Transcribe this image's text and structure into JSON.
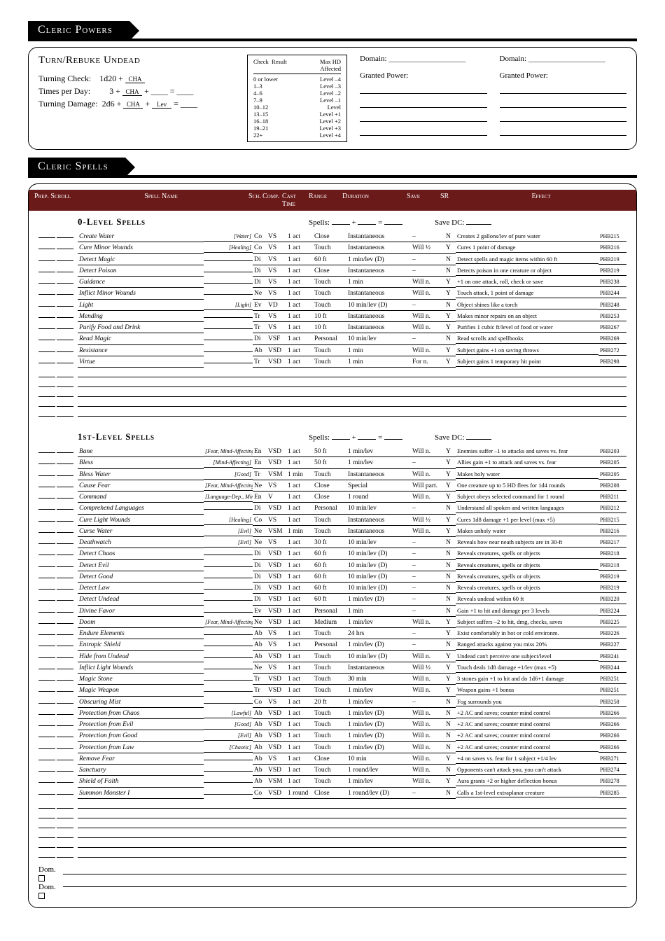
{
  "powers_title": "Cleric Powers",
  "turn": {
    "title": "Turn/Rebuke Undead",
    "check_label": "Turning Check:",
    "check_formula": "1d20 +",
    "check_stat": "CHA",
    "times_label": "Times per Day:",
    "times_base": "3 +",
    "times_stat": "CHA",
    "damage_label": "Turning Damage:",
    "damage_formula": "2d6 +",
    "damage_stat1": "CHA",
    "damage_stat2": "Lev"
  },
  "turn_table": {
    "head_check": "Check",
    "head_result": "Result",
    "head_max": "Max HD Affected",
    "rows": [
      {
        "r": "0 or lower",
        "hd": "Level –4"
      },
      {
        "r": "1–3",
        "hd": "Level –3"
      },
      {
        "r": "4–6",
        "hd": "Level –2"
      },
      {
        "r": "7–9",
        "hd": "Level –1"
      },
      {
        "r": "10–12",
        "hd": "Level"
      },
      {
        "r": "13–15",
        "hd": "Level +1"
      },
      {
        "r": "16–18",
        "hd": "Level +2"
      },
      {
        "r": "19–21",
        "hd": "Level +3"
      },
      {
        "r": "22+",
        "hd": "Level +4"
      }
    ]
  },
  "domain_label": "Domain:",
  "granted_label": "Granted Power:",
  "spells_title": "Cleric Spells",
  "header": {
    "prep": "Prep. Scroll",
    "name": "Spell Name",
    "sch": "Sch.",
    "comp": "Comp.",
    "time": "Cast Time",
    "range": "Range",
    "dur": "Duration",
    "save": "Save",
    "sr": "SR",
    "eff": "Effect"
  },
  "lvl0_title": "0-Level Spells",
  "lvl1_title": "1st-Level Spells",
  "spells_label": "Spells:",
  "save_label": "Save DC:",
  "dom_check": "Dom.",
  "spells0": [
    {
      "n": "Create Water",
      "d": "[Water]",
      "sch": "Co",
      "comp": "VS",
      "t": "1 act",
      "r": "Close",
      "dur": "Instantaneous",
      "save": "–",
      "sr": "N",
      "eff": "Creates 2 gallons/lev of pure water",
      "ref": "PHB215"
    },
    {
      "n": "Cure Minor Wounds",
      "d": "[Healing]",
      "sch": "Co",
      "comp": "VS",
      "t": "1 act",
      "r": "Touch",
      "dur": "Instantaneous",
      "save": "Will ½",
      "sr": "Y",
      "eff": "Cures 1 point of damage",
      "ref": "PHB216"
    },
    {
      "n": "Detect Magic",
      "d": "",
      "sch": "Di",
      "comp": "VS",
      "t": "1 act",
      "r": "60 ft",
      "dur": "1 min/lev (D)",
      "save": "–",
      "sr": "N",
      "eff": "Detect spells and magic items within 60 ft",
      "ref": "PHB219"
    },
    {
      "n": "Detect Poison",
      "d": "",
      "sch": "Di",
      "comp": "VS",
      "t": "1 act",
      "r": "Close",
      "dur": "Instantaneous",
      "save": "–",
      "sr": "N",
      "eff": "Detects poison in one creature or object",
      "ref": "PHB219"
    },
    {
      "n": "Guidance",
      "d": "",
      "sch": "Di",
      "comp": "VS",
      "t": "1 act",
      "r": "Touch",
      "dur": "1 min",
      "save": "Will n.",
      "sr": "Y",
      "eff": "+1 on one attack, roll, check or save",
      "ref": "PHB238"
    },
    {
      "n": "Inflict Minor Wounds",
      "d": "",
      "sch": "Ne",
      "comp": "VS",
      "t": "1 act",
      "r": "Touch",
      "dur": "Instantaneous",
      "save": "Will n.",
      "sr": "Y",
      "eff": "Touch attack, 1 point of damage",
      "ref": "PHB244"
    },
    {
      "n": "Light",
      "d": "[Light]",
      "sch": "Ev",
      "comp": "VD",
      "t": "1 act",
      "r": "Touch",
      "dur": "10 min/lev (D)",
      "save": "–",
      "sr": "N",
      "eff": "Object shines like a torch",
      "ref": "PHB248"
    },
    {
      "n": "Mending",
      "d": "",
      "sch": "Tr",
      "comp": "VS",
      "t": "1 act",
      "r": "10 ft",
      "dur": "Instantaneous",
      "save": "Will n.",
      "sr": "Y",
      "eff": "Makes minor repairs on an object",
      "ref": "PHB253"
    },
    {
      "n": "Purify Food and Drink",
      "d": "",
      "sch": "Tr",
      "comp": "VS",
      "t": "1 act",
      "r": "10 ft",
      "dur": "Instantaneous",
      "save": "Will n.",
      "sr": "Y",
      "eff": "Purifies 1 cubic ft/level of food or water",
      "ref": "PHB267"
    },
    {
      "n": "Read Magic",
      "d": "",
      "sch": "Di",
      "comp": "VSF",
      "t": "1 act",
      "r": "Personal",
      "dur": "10 min/lev",
      "save": "–",
      "sr": "N",
      "eff": "Read scrolls and spellbooks",
      "ref": "PHB269"
    },
    {
      "n": "Resistance",
      "d": "",
      "sch": "Ab",
      "comp": "VSD",
      "t": "1 act",
      "r": "Touch",
      "dur": "1 min",
      "save": "Will n.",
      "sr": "Y",
      "eff": "Subject gains +1 on saving throws",
      "ref": "PHB272"
    },
    {
      "n": "Virtue",
      "d": "",
      "sch": "Tr",
      "comp": "VSD",
      "t": "1 act",
      "r": "Touch",
      "dur": "1 min",
      "save": "For n.",
      "sr": "Y",
      "eff": "Subject gains 1 temporary hit point",
      "ref": "PHB298"
    }
  ],
  "spells1": [
    {
      "n": "Bane",
      "d": "[Fear, Mind-Affecting]",
      "sch": "En",
      "comp": "VSD",
      "t": "1 act",
      "r": "50 ft",
      "dur": "1 min/lev",
      "save": "Will n.",
      "sr": "Y",
      "eff": "Enemies suffer –1 to attacks and saves vs. fear",
      "ref": "PHB203"
    },
    {
      "n": "Bless",
      "d": "[Mind-Affecting]",
      "sch": "En",
      "comp": "VSD",
      "t": "1 act",
      "r": "50 ft",
      "dur": "1 min/lev",
      "save": "–",
      "sr": "Y",
      "eff": "Allies gain +1 to attack and saves vs. fear",
      "ref": "PHB205"
    },
    {
      "n": "Bless Water",
      "d": "[Good]",
      "sch": "Tr",
      "comp": "VSM",
      "t": "1 min",
      "r": "Touch",
      "dur": "Instantaneous",
      "save": "Will n.",
      "sr": "Y",
      "eff": "Makes holy water",
      "ref": "PHB205"
    },
    {
      "n": "Cause Fear",
      "d": "[Fear, Mind-Affecting]",
      "sch": "Ne",
      "comp": "VS",
      "t": "1 act",
      "r": "Close",
      "dur": "Special",
      "save": "Will part.",
      "sr": "Y",
      "eff": "One creature up to 5 HD flees for 1d4 rounds",
      "ref": "PHB208"
    },
    {
      "n": "Command",
      "d": "[Language-Dep., Mind-Affecting]",
      "sch": "En",
      "comp": "V",
      "t": "1 act",
      "r": "Close",
      "dur": "1 round",
      "save": "Will n.",
      "sr": "Y",
      "eff": "Subject obeys selected command for 1 round",
      "ref": "PHB211"
    },
    {
      "n": "Comprehend Languages",
      "d": "",
      "sch": "Di",
      "comp": "VSD",
      "t": "1 act",
      "r": "Personal",
      "dur": "10 min/lev",
      "save": "–",
      "sr": "N",
      "eff": "Understand all spoken and written languages",
      "ref": "PHB212"
    },
    {
      "n": "Cure Light Wounds",
      "d": "[Healing]",
      "sch": "Co",
      "comp": "VS",
      "t": "1 act",
      "r": "Touch",
      "dur": "Instantaneous",
      "save": "Will ½",
      "sr": "Y",
      "eff": "Cures 1d8 damage +1 per level (max +5)",
      "ref": "PHB215"
    },
    {
      "n": "Curse Water",
      "d": "[Evil]",
      "sch": "Ne",
      "comp": "VSM",
      "t": "1 min",
      "r": "Touch",
      "dur": "Instantaneous",
      "save": "Will n.",
      "sr": "Y",
      "eff": "Makes unholy water",
      "ref": "PHB216"
    },
    {
      "n": "Deathwatch",
      "d": "[Evil]",
      "sch": "Ne",
      "comp": "VS",
      "t": "1 act",
      "r": "30 ft",
      "dur": "10 min/lev",
      "save": "–",
      "sr": "N",
      "eff": "Reveals how near neath subjects are in 30-ft",
      "ref": "PHB217"
    },
    {
      "n": "Detect Chaos",
      "d": "",
      "sch": "Di",
      "comp": "VSD",
      "t": "1 act",
      "r": "60 ft",
      "dur": "10 min/lev (D)",
      "save": "–",
      "sr": "N",
      "eff": "Reveals creatures, spells or objects",
      "ref": "PHB218"
    },
    {
      "n": "Detect Evil",
      "d": "",
      "sch": "Di",
      "comp": "VSD",
      "t": "1 act",
      "r": "60 ft",
      "dur": "10 min/lev (D)",
      "save": "–",
      "sr": "N",
      "eff": "Reveals creatures, spells or objects",
      "ref": "PHB218"
    },
    {
      "n": "Detect Good",
      "d": "",
      "sch": "Di",
      "comp": "VSD",
      "t": "1 act",
      "r": "60 ft",
      "dur": "10 min/lev (D)",
      "save": "–",
      "sr": "N",
      "eff": "Reveals creatures, spells or objects",
      "ref": "PHB219"
    },
    {
      "n": "Detect Law",
      "d": "",
      "sch": "Di",
      "comp": "VSD",
      "t": "1 act",
      "r": "60 ft",
      "dur": "10 min/lev (D)",
      "save": "–",
      "sr": "N",
      "eff": "Reveals creatures, spells or objects",
      "ref": "PHB219"
    },
    {
      "n": "Detect Undead",
      "d": "",
      "sch": "Di",
      "comp": "VSD",
      "t": "1 act",
      "r": "60 ft",
      "dur": "1 min/lev (D)",
      "save": "–",
      "sr": "N",
      "eff": "Reveals undead within 60 ft",
      "ref": "PHB220"
    },
    {
      "n": "Divine Favor",
      "d": "",
      "sch": "Ev",
      "comp": "VSD",
      "t": "1 act",
      "r": "Personal",
      "dur": "1 min",
      "save": "–",
      "sr": "N",
      "eff": "Gain +1 to hit and damage per 3 levels",
      "ref": "PHB224"
    },
    {
      "n": "Doom",
      "d": "[Fear, Mind-Affecting]",
      "sch": "Ne",
      "comp": "VSD",
      "t": "1 act",
      "r": "Medium",
      "dur": "1 min/lev",
      "save": "Will n.",
      "sr": "Y",
      "eff": "Subject suffers –2 to hit, dmg, checks, saves",
      "ref": "PHB225"
    },
    {
      "n": "Endure Elements",
      "d": "",
      "sch": "Ab",
      "comp": "VS",
      "t": "1 act",
      "r": "Touch",
      "dur": "24 hrs",
      "save": "–",
      "sr": "Y",
      "eff": "Exist comfortably in hot or cold environm.",
      "ref": "PHB226"
    },
    {
      "n": "Entropic Shield",
      "d": "",
      "sch": "Ab",
      "comp": "VS",
      "t": "1 act",
      "r": "Personal",
      "dur": "1 min/lev (D)",
      "save": "–",
      "sr": "N",
      "eff": "Ranged attacks against you miss 20%",
      "ref": "PHB227"
    },
    {
      "n": "Hide from Undead",
      "d": "",
      "sch": "Ab",
      "comp": "VSD",
      "t": "1 act",
      "r": "Touch",
      "dur": "10 min/lev (D)",
      "save": "Will n.",
      "sr": "Y",
      "eff": "Undead can't perceive one subject/level",
      "ref": "PHB241"
    },
    {
      "n": "Inflict Light Wounds",
      "d": "",
      "sch": "Ne",
      "comp": "VS",
      "t": "1 act",
      "r": "Touch",
      "dur": "Instantaneous",
      "save": "Will ½",
      "sr": "Y",
      "eff": "Touch deals 1d8 damage +1/lev (max +5)",
      "ref": "PHB244"
    },
    {
      "n": "Magic Stone",
      "d": "",
      "sch": "Tr",
      "comp": "VSD",
      "t": "1 act",
      "r": "Touch",
      "dur": "30 min",
      "save": "Will n.",
      "sr": "Y",
      "eff": "3 stones gain +1 to hit and do 1d6+1 damage",
      "ref": "PHB251"
    },
    {
      "n": "Magic Weapon",
      "d": "",
      "sch": "Tr",
      "comp": "VSD",
      "t": "1 act",
      "r": "Touch",
      "dur": "1 min/lev",
      "save": "Will n.",
      "sr": "Y",
      "eff": "Weapon gains +1 bonus",
      "ref": "PHB251"
    },
    {
      "n": "Obscuring Mist",
      "d": "",
      "sch": "Co",
      "comp": "VS",
      "t": "1 act",
      "r": "20 ft",
      "dur": "1 min/lev",
      "save": "–",
      "sr": "N",
      "eff": "Fog surrounds you",
      "ref": "PHB258"
    },
    {
      "n": "Protection from Chaos",
      "d": "[Lawful]",
      "sch": "Ab",
      "comp": "VSD",
      "t": "1 act",
      "r": "Touch",
      "dur": "1 min/lev (D)",
      "save": "Will n.",
      "sr": "N",
      "eff": "+2 AC and saves; counter mind control",
      "ref": "PHB266"
    },
    {
      "n": "Protection from Evil",
      "d": "[Good]",
      "sch": "Ab",
      "comp": "VSD",
      "t": "1 act",
      "r": "Touch",
      "dur": "1 min/lev (D)",
      "save": "Will n.",
      "sr": "N",
      "eff": "+2 AC and saves; counter mind control",
      "ref": "PHB266"
    },
    {
      "n": "Protection from Good",
      "d": "[Evil]",
      "sch": "Ab",
      "comp": "VSD",
      "t": "1 act",
      "r": "Touch",
      "dur": "1 min/lev (D)",
      "save": "Will n.",
      "sr": "N",
      "eff": "+2 AC and saves; counter mind control",
      "ref": "PHB266"
    },
    {
      "n": "Protection from Law",
      "d": "[Chaotic]",
      "sch": "Ab",
      "comp": "VSD",
      "t": "1 act",
      "r": "Touch",
      "dur": "1 min/lev (D)",
      "save": "Will n.",
      "sr": "N",
      "eff": "+2 AC and saves; counter mind control",
      "ref": "PHB266"
    },
    {
      "n": "Remove Fear",
      "d": "",
      "sch": "Ab",
      "comp": "VS",
      "t": "1 act",
      "r": "Close",
      "dur": "10 min",
      "save": "Will n.",
      "sr": "Y",
      "eff": "+4 on saves vs. fear for 1 subject +1/4 lev",
      "ref": "PHB271"
    },
    {
      "n": "Sanctuary",
      "d": "",
      "sch": "Ab",
      "comp": "VSD",
      "t": "1 act",
      "r": "Touch",
      "dur": "1 round/lev",
      "save": "Will n.",
      "sr": "N",
      "eff": "Opponents can't attack you, you can't attack",
      "ref": "PHB274"
    },
    {
      "n": "Shield of Faith",
      "d": "",
      "sch": "Ab",
      "comp": "VSM",
      "t": "1 act",
      "r": "Touch",
      "dur": "1 min/lev",
      "save": "Will n.",
      "sr": "Y",
      "eff": "Aura grants +2 or higher deflection bonus",
      "ref": "PHB278"
    },
    {
      "n": "Summon Monster I",
      "d": "",
      "sch": "Co",
      "comp": "VSD",
      "t": "1 round",
      "r": "Close",
      "dur": "1 round/lev (D)",
      "save": "–",
      "sr": "N",
      "eff": "Calls a 1st-level extraplanar creature",
      "ref": "PHB285"
    }
  ]
}
